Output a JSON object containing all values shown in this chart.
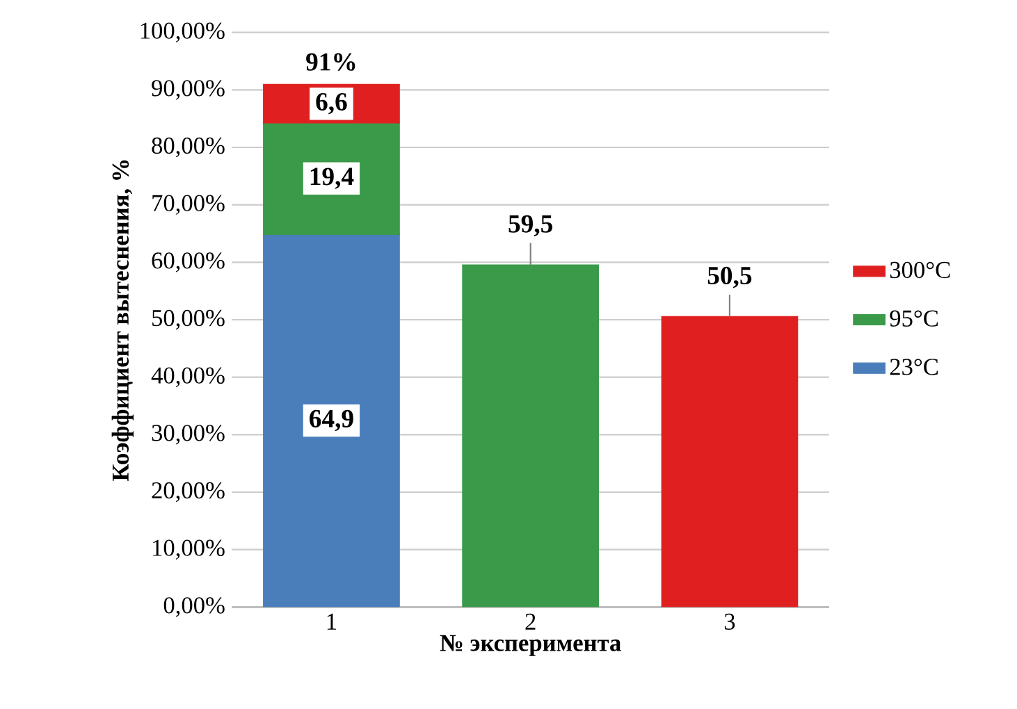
{
  "chart_data": {
    "type": "bar",
    "stacked": true,
    "xlabel": "№ эксперимента",
    "ylabel": "Коэффициент вытеснения, %",
    "categories": [
      "1",
      "2",
      "3"
    ],
    "series": [
      {
        "name": "23°C",
        "color": "#4a7ebb",
        "values": [
          64.9,
          null,
          null
        ],
        "value_labels": [
          "64,9",
          null,
          null
        ]
      },
      {
        "name": "95°C",
        "color": "#3a9a4a",
        "values": [
          19.4,
          59.5,
          null
        ],
        "value_labels": [
          "19,4",
          "59,5",
          null
        ]
      },
      {
        "name": "300°C",
        "color": "#e02020",
        "values": [
          6.6,
          null,
          50.5
        ],
        "value_labels": [
          "6,6",
          null,
          "50,5"
        ]
      }
    ],
    "totals": [
      "91%",
      null,
      null
    ],
    "ylim": [
      0,
      100
    ],
    "yticks": [
      {
        "value": 0,
        "label": "0,00%"
      },
      {
        "value": 10,
        "label": "10,00%"
      },
      {
        "value": 20,
        "label": "20,00%"
      },
      {
        "value": 30,
        "label": "30,00%"
      },
      {
        "value": 40,
        "label": "40,00%"
      },
      {
        "value": 50,
        "label": "50,00%"
      },
      {
        "value": 60,
        "label": "60,00%"
      },
      {
        "value": 70,
        "label": "70,00%"
      },
      {
        "value": 80,
        "label": "80,00%"
      },
      {
        "value": 90,
        "label": "90,00%"
      },
      {
        "value": 100,
        "label": "100,00%"
      }
    ],
    "grid": "y",
    "legend": "right"
  }
}
